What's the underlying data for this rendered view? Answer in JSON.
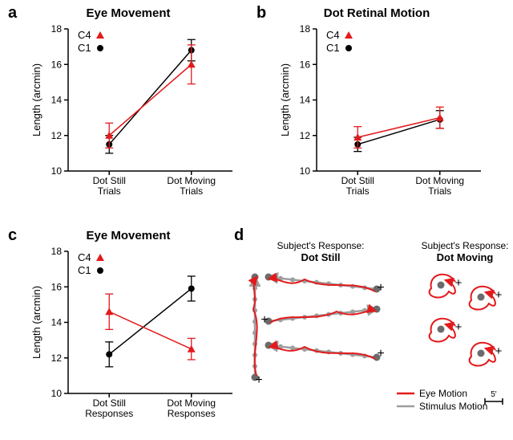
{
  "colors": {
    "c4": "#e31a1c",
    "c1": "#000000",
    "axis": "#000000",
    "text": "#000000",
    "stim": "#9e9e9e",
    "stim_dot": "#6b6b6b"
  },
  "common": {
    "ylabel": "Length (arcmin)",
    "ymin": 10,
    "ymax": 18,
    "yticks": [
      10,
      12,
      14,
      16,
      18
    ],
    "tick_len": 5,
    "axis_fontsize": 12,
    "title_fontsize": 15,
    "label_fontsize": 13,
    "line_width": 1.5,
    "marker_size": 5,
    "err_cap": 5
  },
  "legend": {
    "c4": "C4",
    "c1": "C1"
  },
  "panels": {
    "a": {
      "label": "a",
      "title": "Eye Movement",
      "xcats": [
        "Dot Still\nTrials",
        "Dot Moving\nTrials"
      ],
      "series": {
        "c4": {
          "y": [
            12.0,
            16.0
          ],
          "err": [
            0.7,
            1.1
          ],
          "marker": "triangle"
        },
        "c1": {
          "y": [
            11.5,
            16.8
          ],
          "err": [
            0.5,
            0.6
          ],
          "marker": "circle"
        }
      }
    },
    "b": {
      "label": "b",
      "title": "Dot Retinal Motion",
      "xcats": [
        "Dot Still\nTrials",
        "Dot Moving\nTrials"
      ],
      "series": {
        "c4": {
          "y": [
            11.9,
            13.0
          ],
          "err": [
            0.6,
            0.6
          ],
          "marker": "triangle"
        },
        "c1": {
          "y": [
            11.5,
            12.9
          ],
          "err": [
            0.4,
            0.5
          ],
          "marker": "circle"
        }
      }
    },
    "c": {
      "label": "c",
      "title": "Eye Movement",
      "xcats": [
        "Dot Still\nResponses",
        "Dot Moving\nResponses"
      ],
      "series": {
        "c4": {
          "y": [
            14.6,
            12.5
          ],
          "err": [
            1.0,
            0.6
          ],
          "marker": "triangle"
        },
        "c1": {
          "y": [
            12.2,
            15.9
          ],
          "err": [
            0.7,
            0.7
          ],
          "marker": "circle"
        }
      }
    },
    "d": {
      "label": "d",
      "titles": {
        "still": "Subject's Response:\nDot Still",
        "moving": "Subject's Response:\nDot Moving"
      },
      "legend": {
        "eye": "Eye Motion",
        "stim": "Stimulus Motion",
        "scale": "5'"
      }
    }
  }
}
